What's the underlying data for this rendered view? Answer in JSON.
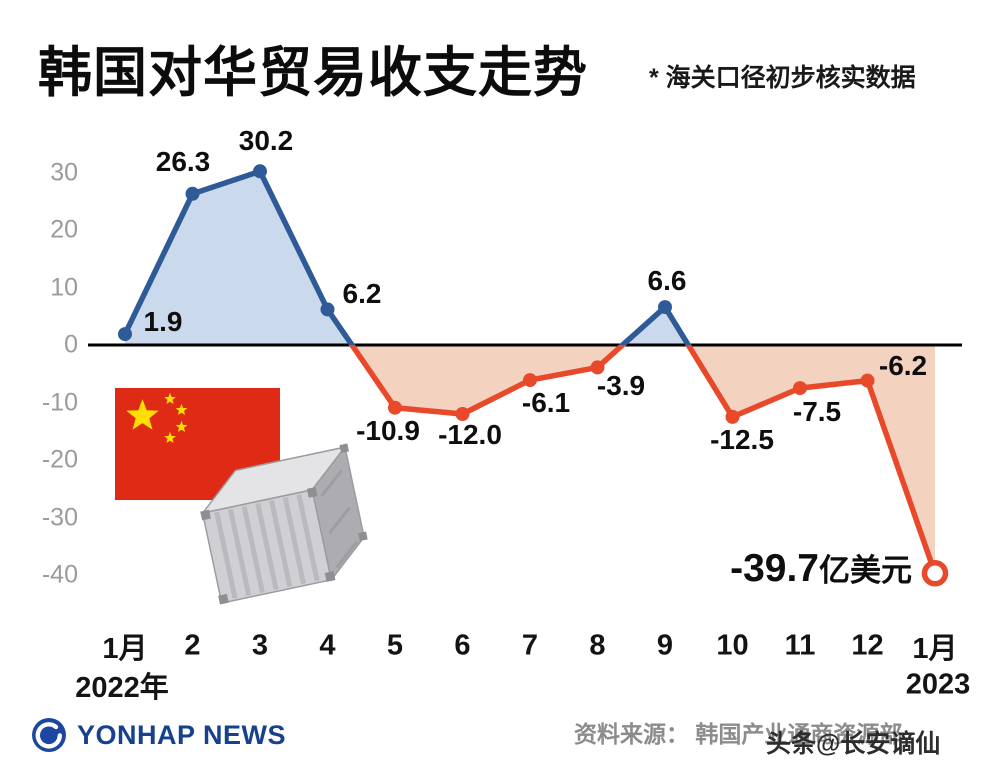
{
  "header": {
    "title": "韩国对华贸易收支走势",
    "subtitle": "* 海关口径初步核实数据"
  },
  "chart_data": {
    "type": "line",
    "title": "韩国对华贸易收支走势",
    "categories": [
      "1月",
      "2",
      "3",
      "4",
      "5",
      "6",
      "7",
      "8",
      "9",
      "10",
      "11",
      "12",
      "1月"
    ],
    "x_year_left": "2022年",
    "x_year_right": "2023",
    "values": [
      1.9,
      26.3,
      30.2,
      6.2,
      -10.9,
      -12.0,
      -6.1,
      -3.9,
      6.6,
      -12.5,
      -7.5,
      -6.2,
      -39.7
    ],
    "point_labels": [
      "1.9",
      "26.3",
      "30.2",
      "6.2",
      "-10.9",
      "-12.0",
      "-6.1",
      "-3.9",
      "6.6",
      "-12.5",
      "-7.5",
      "-6.2"
    ],
    "final_label": {
      "value": "-39.7",
      "unit": "亿美元"
    },
    "y_ticks": [
      30,
      20,
      10,
      0,
      -10,
      -20,
      -30,
      -40
    ],
    "ylim": [
      -45,
      35
    ],
    "grid": false,
    "legend": "none",
    "colors": {
      "positive_line": "#2E5A97",
      "negative_line": "#E7492A",
      "positive_fill": "#CBD9ED",
      "negative_fill": "#F4D2C0",
      "zero_axis": "#000000",
      "flag_red": "#DF2A16",
      "flag_yellow": "#FFDE00"
    }
  },
  "footer": {
    "logo_text": "YONHAP NEWS",
    "source": "资料来源： 韩国产业通商资源部",
    "watermark": "头条@长安谪仙"
  }
}
